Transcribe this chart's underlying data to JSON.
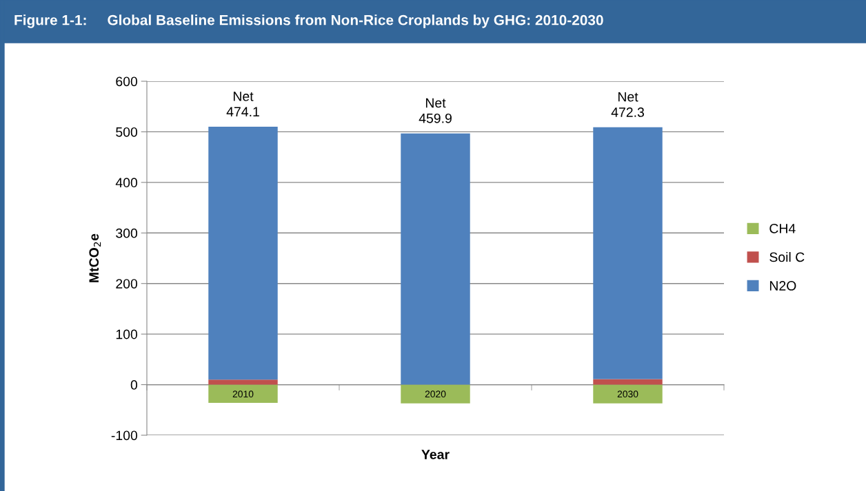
{
  "chart_data": {
    "type": "bar",
    "stacked": true,
    "title": "Figure 1-1:     Global Baseline Emissions from Non-Rice Croplands by GHG: 2010-2030",
    "xlabel": "Year",
    "ylabel": "MtCO$_{2}$e",
    "categories": [
      "2010",
      "2020",
      "2030"
    ],
    "series": [
      {
        "name": "CH4",
        "color": "#9bbb59",
        "values": [
          -36,
          -37,
          -37
        ]
      },
      {
        "name": "Soil C",
        "color": "#c0504d",
        "values": [
          10,
          0,
          11
        ]
      },
      {
        "name": "N2O",
        "color": "#4f81bd",
        "values": [
          500,
          497,
          498
        ]
      }
    ],
    "totals": [
      "Net\n474.1",
      "Net\n459.9",
      "Net\n472.3"
    ],
    "ylim": [
      -100,
      600
    ],
    "yticks": [
      -100,
      0,
      100,
      200,
      300,
      400,
      500,
      600
    ],
    "grid": "y",
    "legend": "right"
  }
}
